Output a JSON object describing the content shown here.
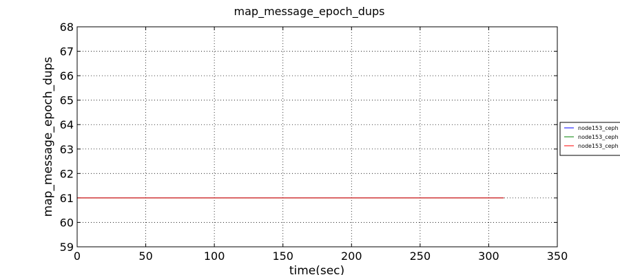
{
  "chart_data": {
    "type": "line",
    "title": "map_message_epoch_dups",
    "xlabel": "time(sec)",
    "ylabel": "map_message_epoch_dups",
    "xlim": [
      0,
      350
    ],
    "ylim": [
      59,
      68
    ],
    "xticks": [
      0,
      50,
      100,
      150,
      200,
      250,
      300,
      350
    ],
    "yticks": [
      59,
      60,
      61,
      62,
      63,
      64,
      65,
      66,
      67,
      68
    ],
    "grid": true,
    "legend_position": "right, outside plot (clipped)",
    "series": [
      {
        "name": "node153_ceph",
        "color": "#0000ff",
        "x": [
          0,
          311
        ],
        "y": [
          61,
          61
        ]
      },
      {
        "name": "node153_ceph",
        "color": "#008000",
        "x": [
          0,
          311
        ],
        "y": [
          61,
          61
        ]
      },
      {
        "name": "node153_ceph",
        "color": "#ff0000",
        "x": [
          0,
          311
        ],
        "y": [
          61,
          61
        ]
      }
    ]
  }
}
